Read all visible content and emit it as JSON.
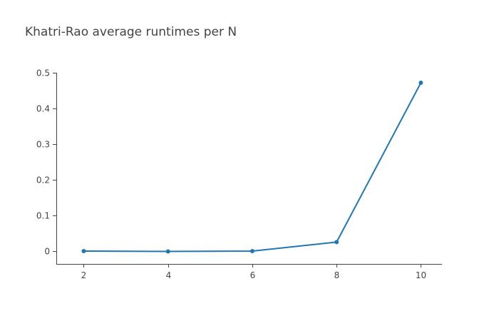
{
  "chart_data": {
    "type": "line",
    "title": "Khatri-Rao average runtimes per N",
    "xlabel": "",
    "ylabel": "",
    "x": [
      2,
      4,
      6,
      8,
      10
    ],
    "series": [
      {
        "values": [
          0.001,
          0.0,
          0.001,
          0.026,
          0.472
        ],
        "color": "#1f77b4"
      }
    ],
    "xlim": [
      1.35,
      10.5
    ],
    "ylim": [
      -0.035,
      0.5
    ],
    "xticks": [
      "2",
      "4",
      "6",
      "8",
      "10"
    ],
    "yticks": [
      "0",
      "0.1",
      "0.2",
      "0.3",
      "0.4",
      "0.5"
    ],
    "grid": false,
    "legend": "none"
  }
}
